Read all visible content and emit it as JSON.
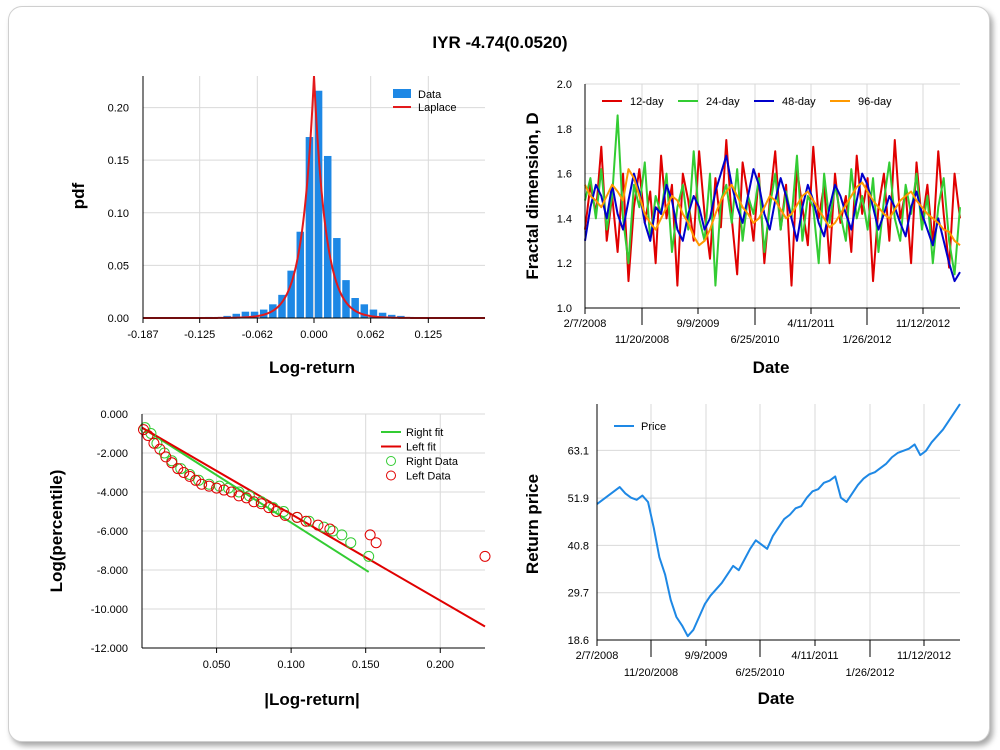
{
  "title": "IYR -4.74(0.0520)",
  "chart_data": [
    {
      "type": "bar",
      "xlabel": "Log-return",
      "ylabel": "pdf",
      "xlim": [
        -0.187,
        0.187
      ],
      "ylim": [
        0,
        0.23
      ],
      "xticks": [
        "-0.187",
        "-0.125",
        "-0.062",
        "0.000",
        "0.062",
        "0.125"
      ],
      "xtick_values": [
        -0.187,
        -0.125,
        -0.062,
        0.0,
        0.062,
        0.125
      ],
      "yticks": [
        "0.00",
        "0.05",
        "0.10",
        "0.15",
        "0.20"
      ],
      "ytick_values": [
        0,
        0.05,
        0.1,
        0.15,
        0.2
      ],
      "legend": [
        "Data",
        "Laplace"
      ],
      "series_colors": {
        "data": "#1e88e5",
        "fit": "#e31a1c"
      },
      "bins_center": [
        -0.135,
        -0.125,
        -0.115,
        -0.105,
        -0.095,
        -0.085,
        -0.075,
        -0.065,
        -0.055,
        -0.045,
        -0.035,
        -0.025,
        -0.015,
        -0.005,
        0.005,
        0.015,
        0.025,
        0.035,
        0.045,
        0.055,
        0.065,
        0.075,
        0.085,
        0.095,
        0.105,
        0.115,
        0.125
      ],
      "bins_value": [
        0.0005,
        0.0008,
        0.001,
        0.001,
        0.002,
        0.004,
        0.006,
        0.006,
        0.008,
        0.013,
        0.022,
        0.045,
        0.082,
        0.172,
        0.216,
        0.154,
        0.076,
        0.036,
        0.019,
        0.013,
        0.008,
        0.005,
        0.003,
        0.002,
        0.001,
        0.0008,
        0.0005
      ],
      "fit": {
        "mu": 0.0,
        "peak": 0.23,
        "scale": 0.0128
      }
    },
    {
      "type": "line",
      "xlabel": "Date",
      "ylabel": "Fractal dimension, D",
      "ylim": [
        1.0,
        2.0
      ],
      "yticks": [
        "1.0",
        "1.2",
        "1.4",
        "1.6",
        "1.8",
        "2.0"
      ],
      "ytick_values": [
        1.0,
        1.2,
        1.4,
        1.6,
        1.8,
        2.0
      ],
      "xticks_row1": [
        "2/7/2008",
        "9/9/2009",
        "4/11/2011",
        "11/12/2012"
      ],
      "xticks_row2": [
        "11/20/2008",
        "6/25/2010",
        "1/26/2012"
      ],
      "series": [
        {
          "name": "12-day",
          "color": "#e00000",
          "values": [
            1.35,
            1.55,
            1.42,
            1.72,
            1.3,
            1.5,
            1.25,
            1.6,
            1.12,
            1.45,
            1.62,
            1.38,
            1.52,
            1.2,
            1.68,
            1.4,
            1.55,
            1.1,
            1.6,
            1.48,
            1.3,
            1.7,
            1.42,
            1.22,
            1.58,
            1.36,
            1.75,
            1.4,
            1.15,
            1.65,
            1.5,
            1.3,
            1.6,
            1.2,
            1.48,
            1.7,
            1.35,
            1.55,
            1.1,
            1.62,
            1.45,
            1.28,
            1.72,
            1.4,
            1.55,
            1.2,
            1.6,
            1.38,
            1.5,
            1.25,
            1.68,
            1.42,
            1.58,
            1.12,
            1.45,
            1.6,
            1.3,
            1.75,
            1.4,
            1.52,
            1.2,
            1.65,
            1.38,
            1.55,
            1.28,
            1.7,
            1.42,
            1.18,
            1.6,
            1.4
          ]
        },
        {
          "name": "24-day",
          "color": "#33cc33",
          "values": [
            1.48,
            1.58,
            1.4,
            1.62,
            1.35,
            1.5,
            1.86,
            1.4,
            1.2,
            1.55,
            1.45,
            1.65,
            1.3,
            1.5,
            1.42,
            1.6,
            1.25,
            1.45,
            1.55,
            1.35,
            1.7,
            1.4,
            1.3,
            1.6,
            1.1,
            1.48,
            1.55,
            1.38,
            1.62,
            1.3,
            1.5,
            1.42,
            1.58,
            1.25,
            1.45,
            1.6,
            1.35,
            1.52,
            1.4,
            1.68,
            1.3,
            1.5,
            1.45,
            1.2,
            1.6,
            1.38,
            1.55,
            1.42,
            1.3,
            1.62,
            1.4,
            1.5,
            1.35,
            1.58,
            1.25,
            1.48,
            1.65,
            1.4,
            1.3,
            1.55,
            1.42,
            1.6,
            1.35,
            1.5,
            1.2,
            1.45,
            1.58,
            1.3,
            1.15,
            1.45
          ]
        },
        {
          "name": "48-day",
          "color": "#0000cc",
          "values": [
            1.3,
            1.45,
            1.55,
            1.5,
            1.4,
            1.55,
            1.42,
            1.35,
            1.48,
            1.6,
            1.52,
            1.38,
            1.3,
            1.45,
            1.42,
            1.55,
            1.48,
            1.35,
            1.3,
            1.42,
            1.5,
            1.45,
            1.35,
            1.4,
            1.52,
            1.6,
            1.68,
            1.55,
            1.45,
            1.38,
            1.5,
            1.62,
            1.55,
            1.42,
            1.35,
            1.48,
            1.58,
            1.5,
            1.4,
            1.3,
            1.45,
            1.55,
            1.48,
            1.38,
            1.32,
            1.45,
            1.55,
            1.5,
            1.42,
            1.35,
            1.48,
            1.6,
            1.55,
            1.45,
            1.35,
            1.42,
            1.5,
            1.45,
            1.38,
            1.32,
            1.45,
            1.52,
            1.42,
            1.35,
            1.28,
            1.4,
            1.3,
            1.2,
            1.12,
            1.16
          ]
        },
        {
          "name": "96-day",
          "color": "#ff9900",
          "values": [
            1.55,
            1.5,
            1.48,
            1.45,
            1.5,
            1.55,
            1.52,
            1.48,
            1.62,
            1.58,
            1.5,
            1.42,
            1.38,
            1.35,
            1.4,
            1.45,
            1.5,
            1.48,
            1.42,
            1.38,
            1.32,
            1.28,
            1.3,
            1.35,
            1.42,
            1.48,
            1.52,
            1.55,
            1.5,
            1.45,
            1.42,
            1.38,
            1.4,
            1.45,
            1.5,
            1.48,
            1.44,
            1.4,
            1.42,
            1.46,
            1.5,
            1.52,
            1.48,
            1.44,
            1.4,
            1.36,
            1.38,
            1.42,
            1.46,
            1.5,
            1.54,
            1.56,
            1.52,
            1.48,
            1.45,
            1.42,
            1.4,
            1.44,
            1.48,
            1.5,
            1.52,
            1.48,
            1.45,
            1.42,
            1.4,
            1.38,
            1.35,
            1.34,
            1.3,
            1.28
          ]
        }
      ]
    },
    {
      "type": "scatter",
      "xlabel": "|Log-return|",
      "ylabel": "Log(percentile)",
      "xlim": [
        0.0,
        0.23
      ],
      "ylim": [
        -12.0,
        0.0
      ],
      "xticks": [
        "0.050",
        "0.100",
        "0.150",
        "0.200"
      ],
      "xtick_values": [
        0.05,
        0.1,
        0.15,
        0.2
      ],
      "yticks": [
        "0.000",
        "-2.000",
        "-4.000",
        "-6.000",
        "-8.000",
        "-10.000",
        "-12.000"
      ],
      "ytick_values": [
        0,
        -2,
        -4,
        -6,
        -8,
        -10,
        -12
      ],
      "legend": [
        "Right fit",
        "Left fit",
        "Right Data",
        "Left Data"
      ],
      "right_fit": {
        "color": "#33cc33",
        "x": [
          0.0,
          0.152
        ],
        "y": [
          -0.7,
          -8.1
        ]
      },
      "left_fit": {
        "color": "#e00000",
        "x": [
          0.0,
          0.23
        ],
        "y": [
          -0.7,
          -10.9
        ]
      },
      "right_data": {
        "color": "#33cc33",
        "x": [
          0.002,
          0.006,
          0.01,
          0.015,
          0.02,
          0.026,
          0.032,
          0.038,
          0.045,
          0.052,
          0.058,
          0.065,
          0.072,
          0.08,
          0.088,
          0.095,
          0.104,
          0.112,
          0.122,
          0.128,
          0.134,
          0.14,
          0.152
        ],
        "y": [
          -0.7,
          -1.0,
          -1.5,
          -2.0,
          -2.4,
          -2.8,
          -3.1,
          -3.4,
          -3.6,
          -3.7,
          -3.8,
          -4.0,
          -4.2,
          -4.5,
          -4.8,
          -5.0,
          -5.3,
          -5.5,
          -5.8,
          -6.0,
          -6.2,
          -6.6,
          -7.3
        ]
      },
      "left_data": {
        "color": "#e00000",
        "x": [
          0.001,
          0.004,
          0.008,
          0.012,
          0.016,
          0.02,
          0.024,
          0.028,
          0.032,
          0.036,
          0.04,
          0.045,
          0.05,
          0.055,
          0.06,
          0.065,
          0.07,
          0.075,
          0.08,
          0.085,
          0.09,
          0.096,
          0.104,
          0.11,
          0.118,
          0.126,
          0.153,
          0.157,
          0.23
        ],
        "y": [
          -0.8,
          -1.1,
          -1.5,
          -1.8,
          -2.2,
          -2.5,
          -2.8,
          -3.0,
          -3.2,
          -3.4,
          -3.6,
          -3.7,
          -3.8,
          -3.9,
          -4.0,
          -4.2,
          -4.3,
          -4.5,
          -4.6,
          -4.8,
          -5.0,
          -5.2,
          -5.3,
          -5.5,
          -5.7,
          -5.9,
          -6.2,
          -6.6,
          -7.3
        ]
      }
    },
    {
      "type": "line",
      "xlabel": "Date",
      "ylabel": "Return price",
      "ylim": [
        18.6,
        74.0
      ],
      "yticks": [
        "18.6",
        "29.7",
        "40.8",
        "51.9",
        "63.1"
      ],
      "ytick_values": [
        18.6,
        29.7,
        40.8,
        51.9,
        63.1
      ],
      "xticks_row1": [
        "2/7/2008",
        "9/9/2009",
        "4/11/2011",
        "11/12/2012"
      ],
      "xticks_row2": [
        "11/20/2008",
        "6/25/2010",
        "1/26/2012"
      ],
      "series": [
        {
          "name": "Price",
          "color": "#1e88e5",
          "values": [
            50.5,
            51.5,
            52.5,
            53.5,
            54.5,
            53.0,
            52.0,
            51.5,
            52.5,
            51.0,
            45.0,
            38.0,
            34.0,
            28.0,
            24.0,
            22.0,
            19.5,
            21.0,
            24.0,
            27.0,
            29.0,
            30.5,
            32.0,
            34.0,
            36.0,
            35.0,
            37.5,
            40.0,
            42.0,
            41.0,
            40.0,
            43.0,
            45.0,
            47.0,
            48.0,
            49.5,
            50.0,
            52.0,
            53.5,
            54.0,
            55.5,
            56.0,
            57.0,
            52.0,
            51.0,
            53.0,
            55.0,
            56.5,
            57.5,
            58.0,
            59.0,
            60.0,
            61.5,
            62.5,
            63.0,
            63.5,
            64.5,
            62.0,
            63.0,
            65.0,
            66.5,
            68.0,
            70.0,
            72.0,
            74.0
          ]
        }
      ]
    }
  ]
}
